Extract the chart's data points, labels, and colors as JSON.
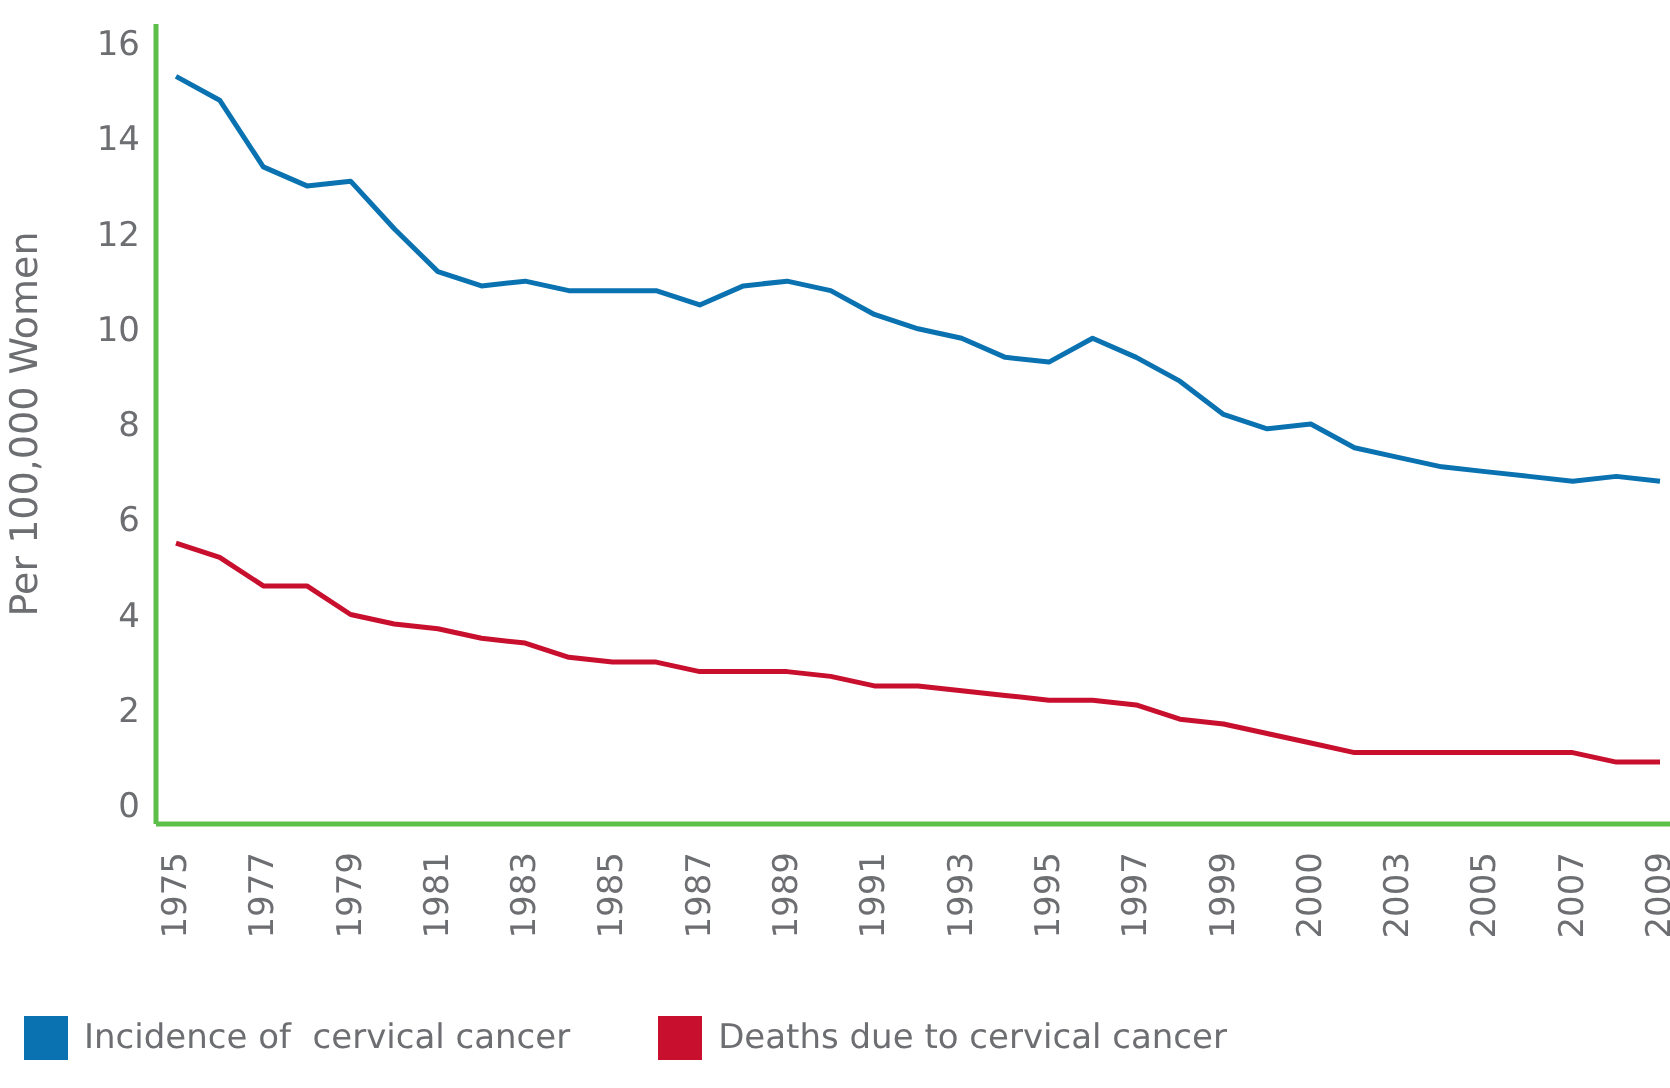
{
  "chart_data": {
    "type": "line",
    "ylabel": "Per 100,000 Women",
    "categories": [
      "1975",
      null,
      "1977",
      null,
      "1979",
      null,
      "1981",
      null,
      "1983",
      null,
      "1985",
      null,
      "1987",
      null,
      "1989",
      null,
      "1991",
      null,
      "1993",
      null,
      "1995",
      null,
      "1997",
      null,
      "1999",
      null,
      "2000",
      null,
      "2003",
      null,
      "2005",
      null,
      "2007",
      null,
      "2009"
    ],
    "series": [
      {
        "name": "Incidence of  cervical cancer",
        "color": "#0a72b0",
        "values": [
          15.3,
          14.8,
          13.4,
          13.0,
          13.1,
          12.1,
          11.2,
          10.9,
          11.0,
          10.8,
          10.8,
          10.8,
          10.5,
          10.9,
          11.0,
          10.8,
          10.3,
          10.0,
          9.8,
          9.4,
          9.3,
          9.8,
          9.4,
          8.9,
          8.2,
          7.9,
          8.0,
          7.5,
          7.3,
          7.1,
          7.0,
          6.9,
          6.8,
          6.9,
          6.8
        ]
      },
      {
        "name": "Deaths due to cervical cancer",
        "color": "#c8102e",
        "values": [
          5.5,
          5.2,
          4.6,
          4.6,
          4.0,
          3.8,
          3.7,
          3.5,
          3.4,
          3.1,
          3.0,
          3.0,
          2.8,
          2.8,
          2.8,
          2.7,
          2.5,
          2.5,
          2.4,
          2.3,
          2.2,
          2.2,
          2.1,
          1.8,
          1.7,
          1.5,
          1.3,
          1.1,
          1.1,
          1.1,
          1.1,
          1.1,
          1.1,
          0.9,
          0.9
        ]
      }
    ],
    "ylim": [
      -0.4,
      16.4
    ],
    "yticks": [
      0,
      2,
      4,
      6,
      8,
      10,
      12,
      14,
      16
    ],
    "grid": false,
    "legend": "bottom",
    "marker": "none",
    "line_style": "solid"
  }
}
